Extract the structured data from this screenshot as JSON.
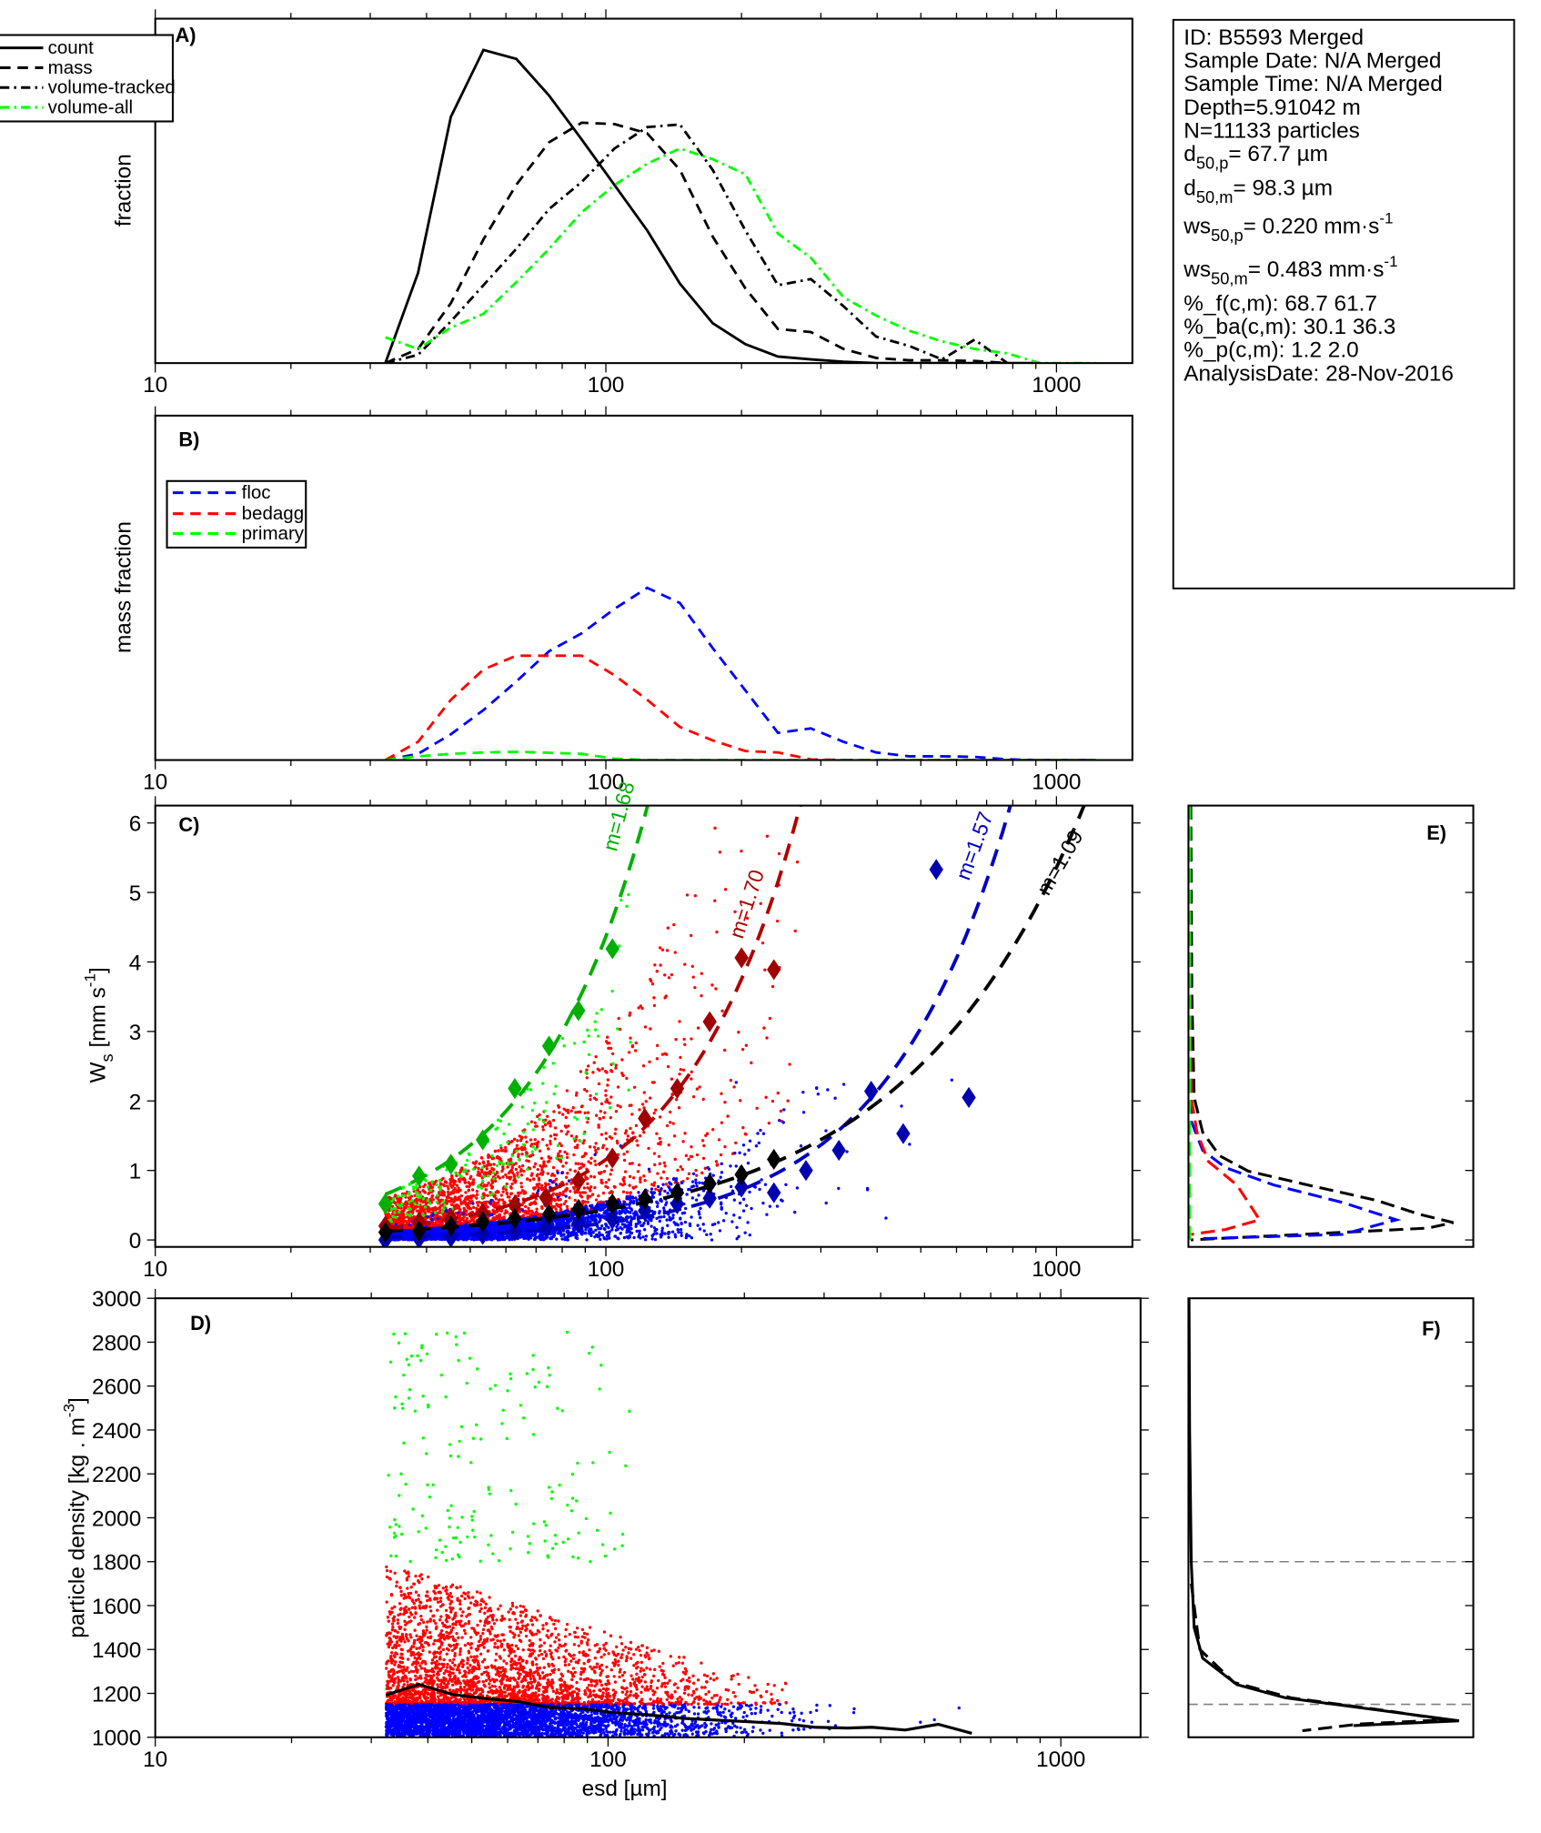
{
  "info_box": {
    "lines": [
      {
        "t": "ID: B5593 Merged"
      },
      {
        "t": "Sample Date: N/A Merged"
      },
      {
        "t": "Sample Time: N/A Merged"
      },
      {
        "t": "Depth=5.91042 m"
      },
      {
        "t": "N=11133 particles"
      },
      {
        "t": "d",
        "sub": "50,p",
        "rest": "=  67.7 µm"
      },
      {
        "t": "d",
        "sub": "50,m",
        "rest": "=  98.3 µm"
      },
      {
        "t": "ws",
        "sub": "50,p",
        "rest": "= 0.220 mm·s",
        "sup": "-1"
      },
      {
        "t": "ws",
        "sub": "50,m",
        "rest": "= 0.483 mm·s",
        "sup": "-1"
      },
      {
        "t": "%_f(c,m): 68.7 61.7"
      },
      {
        "t": "%_ba(c,m): 30.1 36.3"
      },
      {
        "t": "%_p(c,m): 1.2 2.0"
      },
      {
        "t": "AnalysisDate: 28-Nov-2016"
      }
    ]
  },
  "chart_data": [
    {
      "panel_label": "A)",
      "type": "line",
      "ylabel": {
        "t": "fraction"
      },
      "xscale": "log",
      "xlim": [
        10,
        1474
      ],
      "ylim": [
        0,
        1
      ],
      "xticks": [
        "10",
        "100",
        "1000"
      ],
      "legend": "top-left",
      "x": [
        32.4,
        38.3,
        45.3,
        53.5,
        63.3,
        74.8,
        88.4,
        104.5,
        123.5,
        146,
        172.6,
        204,
        241,
        285,
        337,
        398,
        471,
        557,
        658,
        778,
        919,
        1087,
        1222
      ],
      "series": [
        {
          "name": "count",
          "style": "solid",
          "color": "#000000",
          "values": [
            0,
            0.262,
            0.715,
            0.909,
            0.883,
            0.777,
            0.649,
            0.517,
            0.385,
            0.231,
            0.116,
            0.055,
            0.019,
            0.011,
            0.004,
            0,
            0,
            0,
            0,
            0,
            0,
            null,
            null
          ]
        },
        {
          "name": "mass",
          "style": "dashed",
          "color": "#000000",
          "values": [
            0,
            0.041,
            0.174,
            0.359,
            0.518,
            0.641,
            0.698,
            0.694,
            0.667,
            0.561,
            0.367,
            0.217,
            0.099,
            0.09,
            0.041,
            0.015,
            0.008,
            0.008,
            0.006,
            0,
            null,
            null,
            null
          ]
        },
        {
          "name": "volume-tracked",
          "style": "dashdot",
          "color": "#000000",
          "values": [
            0,
            0.024,
            0.121,
            0.226,
            0.332,
            0.447,
            0.526,
            0.623,
            0.685,
            0.693,
            0.561,
            0.385,
            0.226,
            0.244,
            0.165,
            0.077,
            0.05,
            0.011,
            0.068,
            0,
            null,
            null,
            null
          ]
        },
        {
          "name": "volume-all",
          "style": "dashdot",
          "color": "#00ff00",
          "values": [
            0.075,
            0.041,
            0.103,
            0.143,
            0.235,
            0.332,
            0.438,
            0.517,
            0.579,
            0.623,
            0.592,
            0.548,
            0.376,
            0.306,
            0.191,
            0.138,
            0.094,
            0.063,
            0.041,
            0.028,
            0,
            0,
            0
          ]
        }
      ]
    },
    {
      "panel_label": "B)",
      "type": "line",
      "ylabel": {
        "t": "mass fraction"
      },
      "xscale": "log",
      "xlim": [
        10,
        1474
      ],
      "ylim": [
        0,
        1
      ],
      "xticks": [
        "10",
        "100",
        "1000"
      ],
      "legend": "top-left",
      "x": [
        32.4,
        38.3,
        45.3,
        53.5,
        63.3,
        74.8,
        88.4,
        104.5,
        123.5,
        146,
        172.6,
        204,
        241,
        285,
        337,
        398,
        471,
        557,
        658,
        778,
        919,
        1087,
        1222
      ],
      "series": [
        {
          "name": "floc",
          "style": "dashed",
          "color": "#0000ff",
          "values": [
            0,
            0.018,
            0.075,
            0.145,
            0.228,
            0.316,
            0.368,
            0.439,
            0.5,
            0.456,
            0.325,
            0.202,
            0.079,
            0.092,
            0.053,
            0.022,
            0.011,
            0.011,
            0.009,
            0.002,
            0,
            0,
            0
          ]
        },
        {
          "name": "bedagg",
          "style": "dashed",
          "color": "#ff0000",
          "values": [
            0,
            0.053,
            0.175,
            0.263,
            0.303,
            0.303,
            0.303,
            0.246,
            0.175,
            0.096,
            0.057,
            0.026,
            0.022,
            0.002,
            0,
            0,
            0,
            0,
            0,
            0,
            0,
            0,
            0
          ]
        },
        {
          "name": "primary",
          "style": "dashed",
          "color": "#00ff00",
          "values": [
            0,
            0.011,
            0.018,
            0.022,
            0.024,
            0.021,
            0.018,
            0.004,
            0,
            0,
            0,
            0,
            0,
            0,
            0,
            0,
            0,
            0,
            0,
            0,
            0,
            0,
            0
          ]
        }
      ]
    },
    {
      "panel_label": "C)",
      "type": "scatter",
      "ylabel": {
        "t": "W",
        "sub": "s",
        "rest": " [mm s",
        "sup": "-1",
        "end": "]"
      },
      "xscale": "log",
      "xlim": [
        10,
        1474
      ],
      "ylim": [
        -0.1,
        6.25
      ],
      "xticks": [
        "10",
        "100",
        "1000"
      ],
      "yticks": [
        "0",
        "1",
        "2",
        "3",
        "4",
        "5",
        "6"
      ],
      "scatter_colors": {
        "floc": "#0000ff",
        "bedagg": "#ff0000",
        "primary": "#00ff00"
      },
      "binned": [
        {
          "group": "primary",
          "color": "#00b000",
          "x": [
            32.4,
            38.5,
            45.3,
            53.3,
            62.8,
            74.8,
            86.9,
            103.4
          ],
          "y": [
            0.52,
            0.92,
            1.09,
            1.44,
            2.18,
            2.79,
            3.3,
            4.19
          ]
        },
        {
          "group": "bedagg",
          "color": "#a00000",
          "x": [
            32.4,
            38.5,
            45.3,
            53.3,
            62.8,
            73.6,
            86.9,
            103.4,
            122,
            144,
            170,
            200,
            236
          ],
          "y": [
            0.2,
            0.26,
            0.31,
            0.39,
            0.5,
            0.61,
            0.85,
            1.18,
            1.75,
            2.18,
            3.14,
            4.06,
            3.89
          ]
        },
        {
          "group": "floc",
          "color": "#0000b0",
          "x": [
            32.4,
            38.5,
            45.3,
            53.3,
            62.8,
            73.6,
            86.9,
            103.4,
            122,
            144,
            170,
            200,
            236,
            278,
            329,
            388,
            457,
            541,
            639
          ],
          "y": [
            0.0,
            0.02,
            0.04,
            0.08,
            0.13,
            0.18,
            0.24,
            0.3,
            0.42,
            0.52,
            0.6,
            0.76,
            0.68,
            1.0,
            1.29,
            2.14,
            1.53,
            5.33,
            2.05
          ]
        },
        {
          "group": "all",
          "color": "#000000",
          "x": [
            32.4,
            38.5,
            45.3,
            53.3,
            62.8,
            74.8,
            86.9,
            103.4,
            122,
            144,
            170,
            200,
            236
          ],
          "y": [
            0.11,
            0.13,
            0.2,
            0.26,
            0.31,
            0.37,
            0.44,
            0.52,
            0.59,
            0.68,
            0.81,
            0.94,
            1.16
          ]
        }
      ],
      "fits": [
        {
          "label": "m=1.68",
          "color": "#00b000",
          "exponent": 1.68,
          "coefficient": 0.001906,
          "from": 32.4
        },
        {
          "label": "m=1.70",
          "color": "#b00000",
          "exponent": 1.7,
          "coefficient": 0.00046,
          "from": 32.4
        },
        {
          "label": "m=1.57",
          "color": "#0000c0",
          "exponent": 1.57,
          "coefficient": 0.0001764,
          "from": 32.4
        },
        {
          "label": "m=1.09",
          "color": "#000000",
          "exponent": 1.09,
          "coefficient": 0.002879,
          "from": 32.4
        }
      ]
    },
    {
      "panel_label": "D)",
      "type": "scatter",
      "ylabel": {
        "t": "particle density [kg . m",
        "sup": "-3",
        "end": "]"
      },
      "xlabel": "esd [µm]",
      "xscale": "log",
      "xlim": [
        10,
        1500
      ],
      "ylim": [
        1000,
        3000
      ],
      "xticks": [
        "10",
        "100",
        "1000"
      ],
      "yticks": [
        "1000",
        "1200",
        "1400",
        "1600",
        "1800",
        "2000",
        "2200",
        "2400",
        "2600",
        "2800",
        "3000"
      ],
      "scatter_colors": {
        "floc": "#0000ff",
        "bedagg": "#ff0000",
        "primary": "#00ff00"
      },
      "mean_line": {
        "color": "#000000",
        "x": [
          32.3,
          38.2,
          45.3,
          53.8,
          63.3,
          74.5,
          87.6,
          104.8,
          123,
          147,
          173,
          207,
          243,
          286,
          338,
          383,
          453,
          536,
          636
        ],
        "y": [
          1192,
          1241,
          1195,
          1176,
          1163,
          1135,
          1130,
          1111,
          1102,
          1086,
          1078,
          1070,
          1062,
          1046,
          1042,
          1046,
          1033,
          1059,
          1018
        ]
      }
    },
    {
      "panel_label": "E)",
      "type": "line",
      "xlim": [
        0,
        1
      ],
      "ylim": [
        -0.1,
        6.25
      ],
      "series": [
        {
          "group": "all",
          "style": "dashed",
          "color": "#000000",
          "x": [
            0.008,
            0.012,
            0.02,
            0.05,
            0.11,
            0.21,
            0.42,
            0.66,
            0.81,
            0.93,
            0.84,
            0.008
          ],
          "y": [
            6.25,
            3.56,
            2.05,
            1.55,
            1.21,
            0.99,
            0.79,
            0.57,
            0.37,
            0.25,
            0.17,
            0.0
          ]
        },
        {
          "group": "floc",
          "style": "dashed",
          "color": "#0000ff",
          "x": [
            0.004,
            0.006,
            0.01,
            0.05,
            0.13,
            0.3,
            0.54,
            0.73,
            0.54,
            0.05
          ],
          "y": [
            6.25,
            3.0,
            1.71,
            1.29,
            1.04,
            0.79,
            0.54,
            0.29,
            0.08,
            0.02
          ]
        },
        {
          "group": "bedagg",
          "style": "dashed",
          "color": "#ff0000",
          "x": [
            0.004,
            0.006,
            0.01,
            0.03,
            0.07,
            0.17,
            0.25,
            0.13,
            0.01
          ],
          "y": [
            6.25,
            3.5,
            2.05,
            1.55,
            1.13,
            0.79,
            0.29,
            0.15,
            0.08
          ]
        },
        {
          "group": "primary",
          "style": "dashed",
          "color": "#00ff00",
          "x": [
            0.004,
            0.004
          ],
          "y": [
            6.25,
            0.0
          ]
        }
      ]
    },
    {
      "panel_label": "F)",
      "type": "line",
      "xlim": [
        0,
        1
      ],
      "ylim": [
        1000,
        3000
      ],
      "reference_lines": {
        "y": [
          1800,
          1150
        ],
        "color": "#808080",
        "style": "dashed"
      },
      "series": [
        {
          "style": "solid",
          "color": "#000000",
          "x": [
            0.002,
            0.004,
            0.01,
            0.02,
            0.05,
            0.17,
            0.34,
            0.66,
            0.95,
            0.58
          ],
          "y": [
            3000,
            2400,
            1800,
            1500,
            1360,
            1240,
            1180,
            1125,
            1075,
            1053
          ]
        },
        {
          "style": "dashed",
          "color": "#000000",
          "x": [
            0.01,
            0.04,
            0.16,
            0.36,
            0.7,
            0.9,
            0.6,
            0.4
          ],
          "y": [
            1700,
            1400,
            1250,
            1180,
            1120,
            1080,
            1060,
            1030
          ]
        }
      ]
    }
  ]
}
